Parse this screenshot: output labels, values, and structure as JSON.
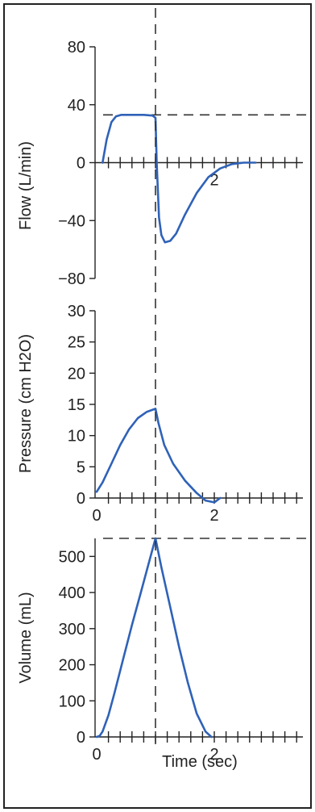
{
  "colors": {
    "curve": "#2f62b8",
    "axis": "#222222",
    "dashed": "#333333"
  },
  "chart_data": [
    {
      "type": "line",
      "ylabel": "Flow (L/min)",
      "ylim": [
        -80,
        80
      ],
      "yticks": [
        80,
        40,
        0,
        -40,
        -80
      ],
      "ytick_labels": [
        "80",
        "40",
        "0",
        "−40",
        "−80"
      ],
      "xlim": [
        0,
        3.5
      ],
      "xtick_labels": [
        {
          "x": 2,
          "label": "2"
        }
      ],
      "x_minor_step": 0.2,
      "reference_line_y": 33,
      "series": [
        {
          "x": [
            0.1,
            0.17,
            0.25,
            0.33,
            0.42,
            0.6,
            0.8,
            0.95,
            1.0,
            1.02,
            1.06,
            1.1,
            1.16,
            1.25,
            1.35,
            1.5,
            1.7,
            1.9,
            2.1,
            2.3,
            2.5,
            2.7
          ],
          "y": [
            0,
            16,
            28,
            32,
            33,
            33,
            33,
            32.5,
            31,
            0,
            -38,
            -50,
            -55,
            -54,
            -49,
            -36,
            -21,
            -10,
            -4,
            -1,
            0,
            0
          ]
        }
      ]
    },
    {
      "type": "line",
      "ylabel": "Pressure (cm H2O)",
      "ylim": [
        0,
        30
      ],
      "yticks": [
        0,
        5,
        10,
        15,
        20,
        25,
        30
      ],
      "ytick_labels": [
        "0",
        "5",
        "10",
        "15",
        "20",
        "25",
        "30"
      ],
      "xlim": [
        0,
        3.5
      ],
      "xtick_labels": [
        {
          "x": 0,
          "label": "0"
        },
        {
          "x": 2,
          "label": "2"
        }
      ],
      "x_minor_step": 0.2,
      "series": [
        {
          "x": [
            0,
            0.1,
            0.25,
            0.4,
            0.55,
            0.7,
            0.85,
            1.0,
            1.05,
            1.15,
            1.3,
            1.5,
            1.7,
            1.85,
            2.0,
            2.1
          ],
          "y": [
            1,
            2.5,
            5.5,
            8.5,
            11,
            12.8,
            13.8,
            14.3,
            12,
            8.5,
            5.5,
            2.8,
            0.8,
            -0.4,
            -0.7,
            0
          ]
        }
      ]
    },
    {
      "type": "line",
      "ylabel": "Volume (mL)",
      "xlabel": "Time (sec)",
      "ylim": [
        0,
        550
      ],
      "yticks": [
        0,
        100,
        200,
        300,
        400,
        500
      ],
      "ytick_labels": [
        "0",
        "100",
        "200",
        "300",
        "400",
        "500"
      ],
      "xlim": [
        0,
        3.5
      ],
      "xtick_labels": [
        {
          "x": 0,
          "label": "0"
        },
        {
          "x": 2,
          "label": "2"
        }
      ],
      "x_minor_step": 0.2,
      "reference_line_y": 550,
      "series": [
        {
          "x": [
            0,
            0.05,
            0.1,
            0.2,
            0.3,
            0.45,
            0.6,
            0.75,
            0.9,
            1.0,
            1.1,
            1.25,
            1.4,
            1.55,
            1.7,
            1.85,
            1.95
          ],
          "y": [
            0,
            3,
            15,
            60,
            120,
            215,
            310,
            400,
            490,
            550,
            470,
            360,
            250,
            150,
            65,
            15,
            0
          ]
        }
      ]
    }
  ],
  "vertical_reference_x": 1.0
}
